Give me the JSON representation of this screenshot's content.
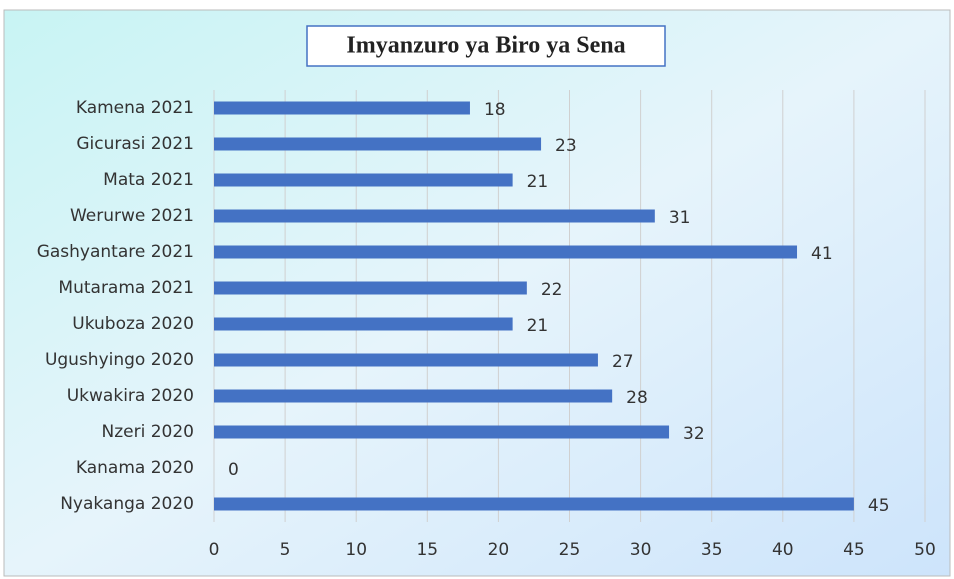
{
  "chart_data": {
    "type": "bar",
    "orientation": "horizontal",
    "title": "Imyanzuro ya Biro ya Sena",
    "categories": [
      "Kamena 2021",
      "Gicurasi 2021",
      "Mata 2021",
      "Werurwe 2021",
      "Gashyantare 2021",
      "Mutarama 2021",
      "Ukuboza 2020",
      "Ugushyingo 2020",
      "Ukwakira 2020",
      "Nzeri 2020",
      "Kanama 2020",
      "Nyakanga 2020"
    ],
    "values": [
      18,
      23,
      21,
      31,
      41,
      22,
      21,
      27,
      28,
      32,
      0,
      45
    ],
    "color": "#4472c4",
    "xlim": [
      0,
      50
    ],
    "xticks": [
      0,
      5,
      10,
      15,
      20,
      25,
      30,
      35,
      40,
      45,
      50
    ],
    "grid": true
  }
}
